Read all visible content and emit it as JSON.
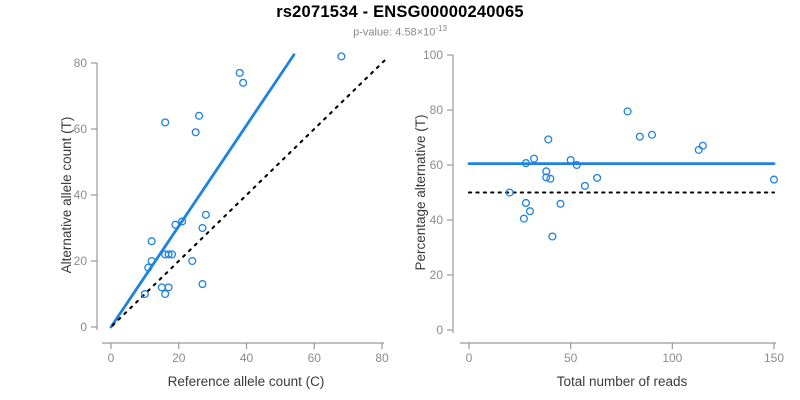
{
  "header": {
    "title": "rs2071534 - ENSG00000240065",
    "pvalue_text": "p-value: 4.58×10",
    "pvalue_exponent": "-13"
  },
  "colors": {
    "blue": "#1e82e0",
    "black": "#000000",
    "axis": "#9a9a9a",
    "tick_label": "#8c8c8c",
    "axis_title": "#3a3a3a"
  },
  "chart_data": [
    {
      "type": "scatter",
      "name": "allele-count-scatter",
      "xlabel": "Reference allele count (C)",
      "ylabel": "Alternative allele count (T)",
      "xlim": [
        0,
        80
      ],
      "ylim": [
        0,
        80
      ],
      "xticks": [
        0,
        20,
        40,
        60,
        80
      ],
      "yticks": [
        0,
        20,
        40,
        60,
        80
      ],
      "grid": false,
      "legend": "none",
      "points": [
        [
          16,
          62
        ],
        [
          26,
          64
        ],
        [
          25,
          59
        ],
        [
          38,
          77
        ],
        [
          39,
          74
        ],
        [
          68,
          82
        ],
        [
          12,
          26
        ],
        [
          11,
          18
        ],
        [
          12,
          20
        ],
        [
          19,
          31
        ],
        [
          21,
          32
        ],
        [
          16,
          22
        ],
        [
          17,
          22
        ],
        [
          18,
          22
        ],
        [
          28,
          34
        ],
        [
          27,
          30
        ],
        [
          10,
          10
        ],
        [
          15,
          12
        ],
        [
          24,
          20
        ],
        [
          17,
          12
        ],
        [
          16,
          10
        ],
        [
          27,
          13
        ]
      ],
      "lines": [
        {
          "name": "fitted-ratio-line",
          "style": "solid",
          "color": "blue",
          "width": 2.8,
          "x1": 0,
          "y1": 0,
          "x2": 54,
          "y2": 82.5
        },
        {
          "name": "identity-line",
          "style": "dashed",
          "color": "black",
          "width": 2.1,
          "x1": 0.5,
          "y1": 0.5,
          "x2": 81,
          "y2": 81
        }
      ]
    },
    {
      "type": "scatter",
      "name": "percentage-scatter",
      "xlabel": "Total number of reads",
      "ylabel": "Percentage alternative (T)",
      "xlim": [
        0,
        150
      ],
      "ylim": [
        0,
        100
      ],
      "xticks": [
        0,
        50,
        100,
        150
      ],
      "yticks": [
        0,
        20,
        40,
        60,
        80,
        100
      ],
      "grid": false,
      "legend": "none",
      "points": [
        [
          78,
          79.5
        ],
        [
          90,
          71
        ],
        [
          84,
          70.3
        ],
        [
          115,
          67
        ],
        [
          113,
          65.5
        ],
        [
          150,
          54.7
        ],
        [
          39,
          69.3
        ],
        [
          28,
          60.7
        ],
        [
          32,
          62.3
        ],
        [
          50,
          61.8
        ],
        [
          53,
          60
        ],
        [
          38,
          57.7
        ],
        [
          38,
          55.5
        ],
        [
          40,
          55
        ],
        [
          63,
          55.3
        ],
        [
          57,
          52.4
        ],
        [
          20,
          50
        ],
        [
          28,
          46.2
        ],
        [
          45,
          45.9
        ],
        [
          30,
          43.2
        ],
        [
          27,
          40.5
        ],
        [
          41,
          34
        ]
      ],
      "lines": [
        {
          "name": "mean-percentage-line",
          "style": "solid",
          "color": "blue",
          "width": 2.8,
          "x1": 0,
          "y1": 60.5,
          "x2": 150,
          "y2": 60.5
        },
        {
          "name": "fifty-percent-line",
          "style": "dotted",
          "color": "black",
          "width": 2.1,
          "x1": 0,
          "y1": 50,
          "x2": 150,
          "y2": 50
        }
      ]
    }
  ]
}
